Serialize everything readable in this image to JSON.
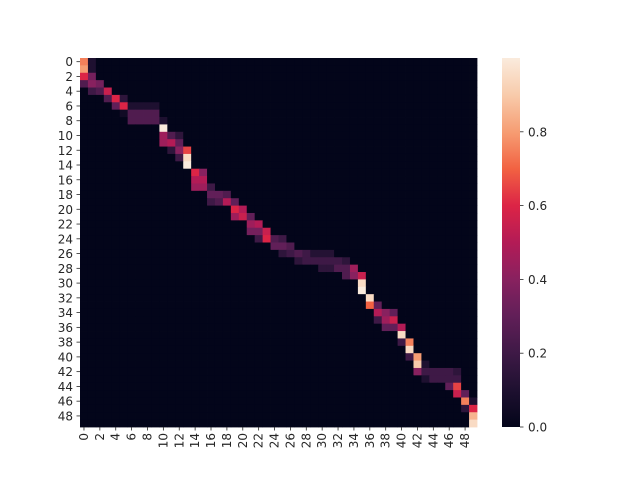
{
  "chart_data": {
    "type": "heatmap",
    "colormap": "rocket",
    "grid": false,
    "vmin": 0.0,
    "vmax": 1.0,
    "colorbar_ticks": [
      "0.0",
      "0.2",
      "0.4",
      "0.6",
      "0.8"
    ],
    "colorbar_values": [
      0.0,
      0.2,
      0.4,
      0.6,
      0.8
    ],
    "x_tick_labels": [
      "0",
      "2",
      "4",
      "6",
      "8",
      "10",
      "12",
      "14",
      "16",
      "18",
      "20",
      "22",
      "24",
      "26",
      "28",
      "30",
      "32",
      "34",
      "36",
      "38",
      "40",
      "42",
      "44",
      "46",
      "48"
    ],
    "y_tick_labels": [
      "0",
      "2",
      "4",
      "6",
      "8",
      "10",
      "12",
      "14",
      "16",
      "18",
      "20",
      "22",
      "24",
      "26",
      "28",
      "30",
      "32",
      "34",
      "36",
      "38",
      "40",
      "42",
      "44",
      "46",
      "48"
    ],
    "n_rows": 50,
    "n_cols": 50,
    "cells": [
      [
        0,
        [
          [
            0,
            0.75
          ],
          [
            1,
            0.1
          ]
        ]
      ],
      [
        1,
        [
          [
            0,
            0.8
          ],
          [
            1,
            0.1
          ]
        ]
      ],
      [
        2,
        [
          [
            0,
            0.6
          ],
          [
            1,
            0.35
          ]
        ]
      ],
      [
        3,
        [
          [
            0,
            0.25
          ],
          [
            1,
            0.4
          ],
          [
            2,
            0.35
          ]
        ]
      ],
      [
        4,
        [
          [
            1,
            0.2
          ],
          [
            2,
            0.25
          ],
          [
            3,
            0.55
          ]
        ]
      ],
      [
        5,
        [
          [
            3,
            0.25
          ],
          [
            4,
            0.6
          ],
          [
            5,
            0.15
          ]
        ]
      ],
      [
        6,
        [
          [
            4,
            0.3
          ],
          [
            5,
            0.6
          ],
          [
            6,
            0.1
          ],
          [
            7,
            0.1
          ],
          [
            8,
            0.1
          ],
          [
            9,
            0.1
          ]
        ]
      ],
      [
        7,
        [
          [
            5,
            0.05
          ],
          [
            6,
            0.25
          ],
          [
            7,
            0.25
          ],
          [
            8,
            0.25
          ],
          [
            9,
            0.25
          ]
        ]
      ],
      [
        8,
        [
          [
            6,
            0.25
          ],
          [
            7,
            0.25
          ],
          [
            8,
            0.25
          ],
          [
            9,
            0.25
          ],
          [
            10,
            0.1
          ]
        ]
      ],
      [
        9,
        [
          [
            10,
            1.0
          ]
        ]
      ],
      [
        10,
        [
          [
            10,
            0.45
          ],
          [
            11,
            0.25
          ],
          [
            12,
            0.15
          ]
        ]
      ],
      [
        11,
        [
          [
            10,
            0.45
          ],
          [
            11,
            0.5
          ],
          [
            12,
            0.3
          ]
        ]
      ],
      [
        12,
        [
          [
            11,
            0.15
          ],
          [
            12,
            0.4
          ],
          [
            13,
            0.65
          ]
        ]
      ],
      [
        13,
        [
          [
            12,
            0.2
          ],
          [
            13,
            0.95
          ]
        ]
      ],
      [
        14,
        [
          [
            13,
            1.0
          ]
        ]
      ],
      [
        15,
        [
          [
            14,
            0.6
          ],
          [
            15,
            0.4
          ]
        ]
      ],
      [
        16,
        [
          [
            14,
            0.5
          ],
          [
            15,
            0.5
          ]
        ]
      ],
      [
        17,
        [
          [
            14,
            0.45
          ],
          [
            15,
            0.45
          ],
          [
            16,
            0.2
          ]
        ]
      ],
      [
        18,
        [
          [
            16,
            0.3
          ],
          [
            17,
            0.3
          ],
          [
            18,
            0.25
          ]
        ]
      ],
      [
        19,
        [
          [
            16,
            0.2
          ],
          [
            17,
            0.25
          ],
          [
            18,
            0.5
          ]
        ]
      ],
      [
        19,
        [
          [
            17,
            0.15
          ],
          [
            18,
            0.4
          ],
          [
            19,
            0.3
          ]
        ]
      ],
      [
        20,
        [
          [
            19,
            0.6
          ],
          [
            20,
            0.5
          ]
        ]
      ],
      [
        21,
        [
          [
            19,
            0.45
          ],
          [
            20,
            0.55
          ],
          [
            21,
            0.3
          ]
        ]
      ],
      [
        22,
        [
          [
            21,
            0.45
          ],
          [
            22,
            0.5
          ]
        ]
      ],
      [
        23,
        [
          [
            21,
            0.35
          ],
          [
            22,
            0.35
          ],
          [
            23,
            0.55
          ]
        ]
      ],
      [
        24,
        [
          [
            22,
            0.2
          ],
          [
            23,
            0.6
          ],
          [
            24,
            0.25
          ],
          [
            25,
            0.2
          ]
        ]
      ],
      [
        25,
        [
          [
            24,
            0.3
          ],
          [
            25,
            0.3
          ],
          [
            26,
            0.25
          ]
        ]
      ],
      [
        26,
        [
          [
            25,
            0.15
          ],
          [
            26,
            0.2
          ],
          [
            27,
            0.25
          ],
          [
            28,
            0.2
          ],
          [
            29,
            0.12
          ],
          [
            30,
            0.12
          ],
          [
            31,
            0.12
          ]
        ]
      ],
      [
        27,
        [
          [
            27,
            0.15
          ],
          [
            28,
            0.2
          ],
          [
            29,
            0.2
          ],
          [
            30,
            0.2
          ],
          [
            31,
            0.2
          ],
          [
            32,
            0.2
          ],
          [
            33,
            0.15
          ]
        ]
      ],
      [
        28,
        [
          [
            30,
            0.15
          ],
          [
            31,
            0.15
          ],
          [
            32,
            0.25
          ],
          [
            33,
            0.25
          ],
          [
            34,
            0.45
          ]
        ]
      ],
      [
        29,
        [
          [
            33,
            0.25
          ],
          [
            34,
            0.4
          ],
          [
            35,
            0.55
          ]
        ]
      ],
      [
        30,
        [
          [
            35,
            0.95
          ]
        ]
      ],
      [
        31,
        [
          [
            35,
            1.0
          ]
        ]
      ],
      [
        32,
        [
          [
            36,
            0.95
          ]
        ]
      ],
      [
        33,
        [
          [
            36,
            0.7
          ],
          [
            37,
            0.3
          ]
        ]
      ],
      [
        34,
        [
          [
            37,
            0.5
          ],
          [
            38,
            0.4
          ],
          [
            39,
            0.3
          ]
        ]
      ],
      [
        35,
        [
          [
            37,
            0.2
          ],
          [
            38,
            0.45
          ],
          [
            39,
            0.55
          ]
        ]
      ],
      [
        36,
        [
          [
            38,
            0.3
          ],
          [
            39,
            0.3
          ],
          [
            40,
            0.5
          ]
        ]
      ],
      [
        37,
        [
          [
            40,
            0.95
          ]
        ]
      ],
      [
        38,
        [
          [
            40,
            0.2
          ],
          [
            41,
            0.75
          ]
        ]
      ],
      [
        39,
        [
          [
            41,
            0.95
          ]
        ]
      ],
      [
        40,
        [
          [
            41,
            0.2
          ],
          [
            42,
            0.8
          ]
        ]
      ],
      [
        41,
        [
          [
            42,
            0.9
          ],
          [
            43,
            0.1
          ]
        ]
      ],
      [
        42,
        [
          [
            42,
            0.4
          ],
          [
            43,
            0.2
          ],
          [
            44,
            0.2
          ],
          [
            45,
            0.2
          ],
          [
            46,
            0.2
          ],
          [
            47,
            0.15
          ]
        ]
      ],
      [
        43,
        [
          [
            43,
            0.1
          ],
          [
            44,
            0.2
          ],
          [
            45,
            0.2
          ],
          [
            46,
            0.2
          ],
          [
            47,
            0.2
          ]
        ]
      ],
      [
        44,
        [
          [
            46,
            0.3
          ],
          [
            47,
            0.65
          ]
        ]
      ],
      [
        45,
        [
          [
            47,
            0.55
          ],
          [
            48,
            0.3
          ]
        ]
      ],
      [
        46,
        [
          [
            48,
            0.75
          ],
          [
            49,
            0.1
          ]
        ]
      ],
      [
        47,
        [
          [
            48,
            0.15
          ],
          [
            49,
            0.6
          ]
        ]
      ],
      [
        48,
        [
          [
            49,
            0.85
          ]
        ]
      ],
      [
        49,
        [
          [
            49,
            0.95
          ]
        ]
      ]
    ]
  }
}
